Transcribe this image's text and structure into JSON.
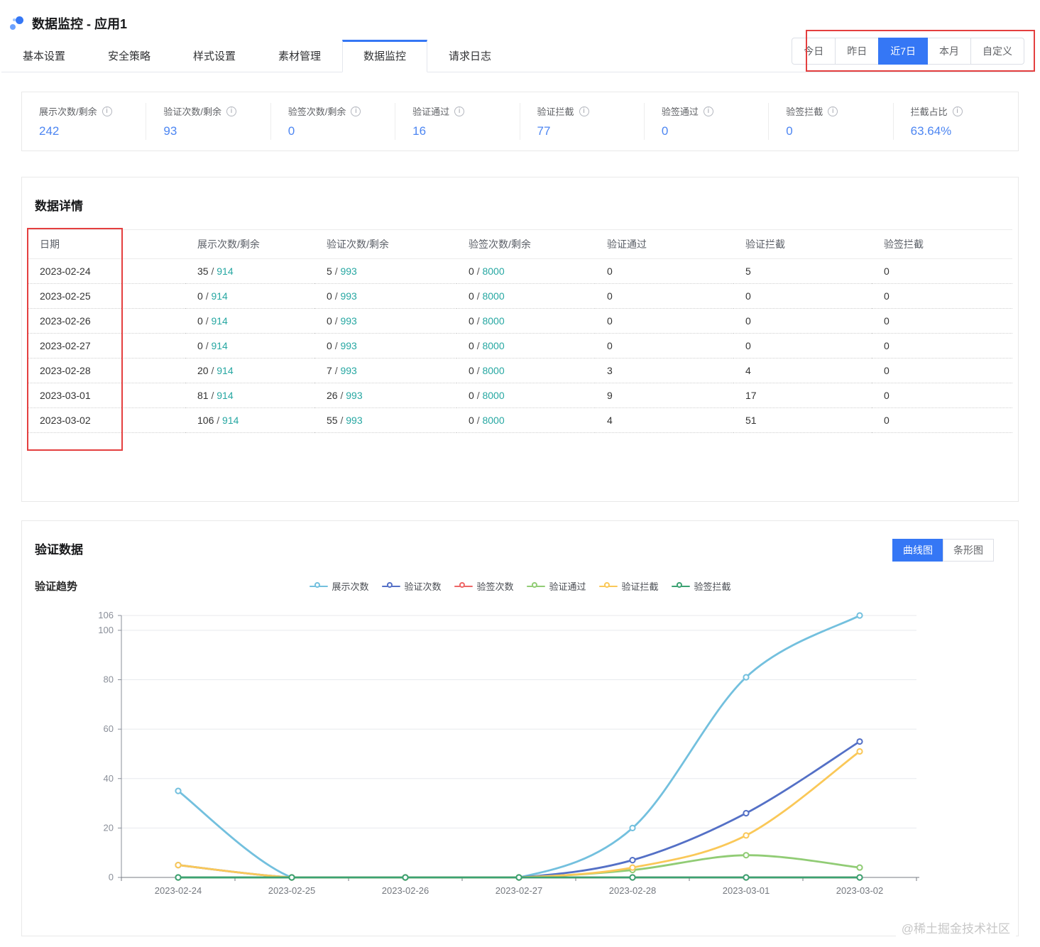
{
  "page": {
    "title": "数据监控 - 应用1",
    "watermark": "@稀土掘金技术社区"
  },
  "tabs": [
    "基本设置",
    "安全策略",
    "样式设置",
    "素材管理",
    "数据监控",
    "请求日志"
  ],
  "date_range": [
    "今日",
    "昨日",
    "近7日",
    "本月",
    "自定义"
  ],
  "stats": [
    {
      "label": "展示次数/剩余",
      "value": "242"
    },
    {
      "label": "验证次数/剩余",
      "value": "93"
    },
    {
      "label": "验签次数/剩余",
      "value": "0"
    },
    {
      "label": "验证通过",
      "value": "16"
    },
    {
      "label": "验证拦截",
      "value": "77"
    },
    {
      "label": "验签通过",
      "value": "0"
    },
    {
      "label": "验签拦截",
      "value": "0"
    },
    {
      "label": "拦截占比",
      "value": "63.64%"
    }
  ],
  "detail": {
    "title": "数据详情",
    "columns": [
      "日期",
      "展示次数/剩余",
      "验证次数/剩余",
      "验签次数/剩余",
      "验证通过",
      "验证拦截",
      "验签拦截"
    ],
    "rows": [
      {
        "date": "2023-02-24",
        "shown": [
          "35",
          "914"
        ],
        "verify": [
          "5",
          "993"
        ],
        "sign": [
          "0",
          "8000"
        ],
        "pass": "0",
        "block": "5",
        "sign_block": "0"
      },
      {
        "date": "2023-02-25",
        "shown": [
          "0",
          "914"
        ],
        "verify": [
          "0",
          "993"
        ],
        "sign": [
          "0",
          "8000"
        ],
        "pass": "0",
        "block": "0",
        "sign_block": "0"
      },
      {
        "date": "2023-02-26",
        "shown": [
          "0",
          "914"
        ],
        "verify": [
          "0",
          "993"
        ],
        "sign": [
          "0",
          "8000"
        ],
        "pass": "0",
        "block": "0",
        "sign_block": "0"
      },
      {
        "date": "2023-02-27",
        "shown": [
          "0",
          "914"
        ],
        "verify": [
          "0",
          "993"
        ],
        "sign": [
          "0",
          "8000"
        ],
        "pass": "0",
        "block": "0",
        "sign_block": "0"
      },
      {
        "date": "2023-02-28",
        "shown": [
          "20",
          "914"
        ],
        "verify": [
          "7",
          "993"
        ],
        "sign": [
          "0",
          "8000"
        ],
        "pass": "3",
        "block": "4",
        "sign_block": "0"
      },
      {
        "date": "2023-03-01",
        "shown": [
          "81",
          "914"
        ],
        "verify": [
          "26",
          "993"
        ],
        "sign": [
          "0",
          "8000"
        ],
        "pass": "9",
        "block": "17",
        "sign_block": "0"
      },
      {
        "date": "2023-03-02",
        "shown": [
          "106",
          "914"
        ],
        "verify": [
          "55",
          "993"
        ],
        "sign": [
          "0",
          "8000"
        ],
        "pass": "4",
        "block": "51",
        "sign_block": "0"
      }
    ]
  },
  "chart_section": {
    "title": "验证数据",
    "subtitle": "验证趋势",
    "toggle": [
      {
        "label": "曲线图"
      },
      {
        "label": "条形图"
      }
    ]
  },
  "chart_data": {
    "type": "line",
    "smooth": true,
    "grid": true,
    "legend_position": "top",
    "x": [
      "2023-02-24",
      "2023-02-25",
      "2023-02-26",
      "2023-02-27",
      "2023-02-28",
      "2023-03-01",
      "2023-03-02"
    ],
    "ylim": [
      0,
      106
    ],
    "yticks": [
      0,
      20,
      40,
      60,
      80,
      100,
      106
    ],
    "series": [
      {
        "name": "展示次数",
        "color": "#73c0de",
        "values": [
          35,
          0,
          0,
          0,
          20,
          81,
          106
        ]
      },
      {
        "name": "验证次数",
        "color": "#5470c6",
        "values": [
          5,
          0,
          0,
          0,
          7,
          26,
          55
        ]
      },
      {
        "name": "验签次数",
        "color": "#ee6666",
        "values": [
          0,
          0,
          0,
          0,
          0,
          0,
          0
        ]
      },
      {
        "name": "验证通过",
        "color": "#91cc75",
        "values": [
          0,
          0,
          0,
          0,
          3,
          9,
          4
        ]
      },
      {
        "name": "验证拦截",
        "color": "#fac858",
        "values": [
          5,
          0,
          0,
          0,
          4,
          17,
          51
        ]
      },
      {
        "name": "验签拦截",
        "color": "#3ba272",
        "values": [
          0,
          0,
          0,
          0,
          0,
          0,
          0
        ]
      }
    ]
  },
  "colors": {
    "accent": "#3577f5",
    "value_blue": "#4d86f2",
    "teal": "#26a7a2",
    "annotation_red": "#e43f3f"
  }
}
